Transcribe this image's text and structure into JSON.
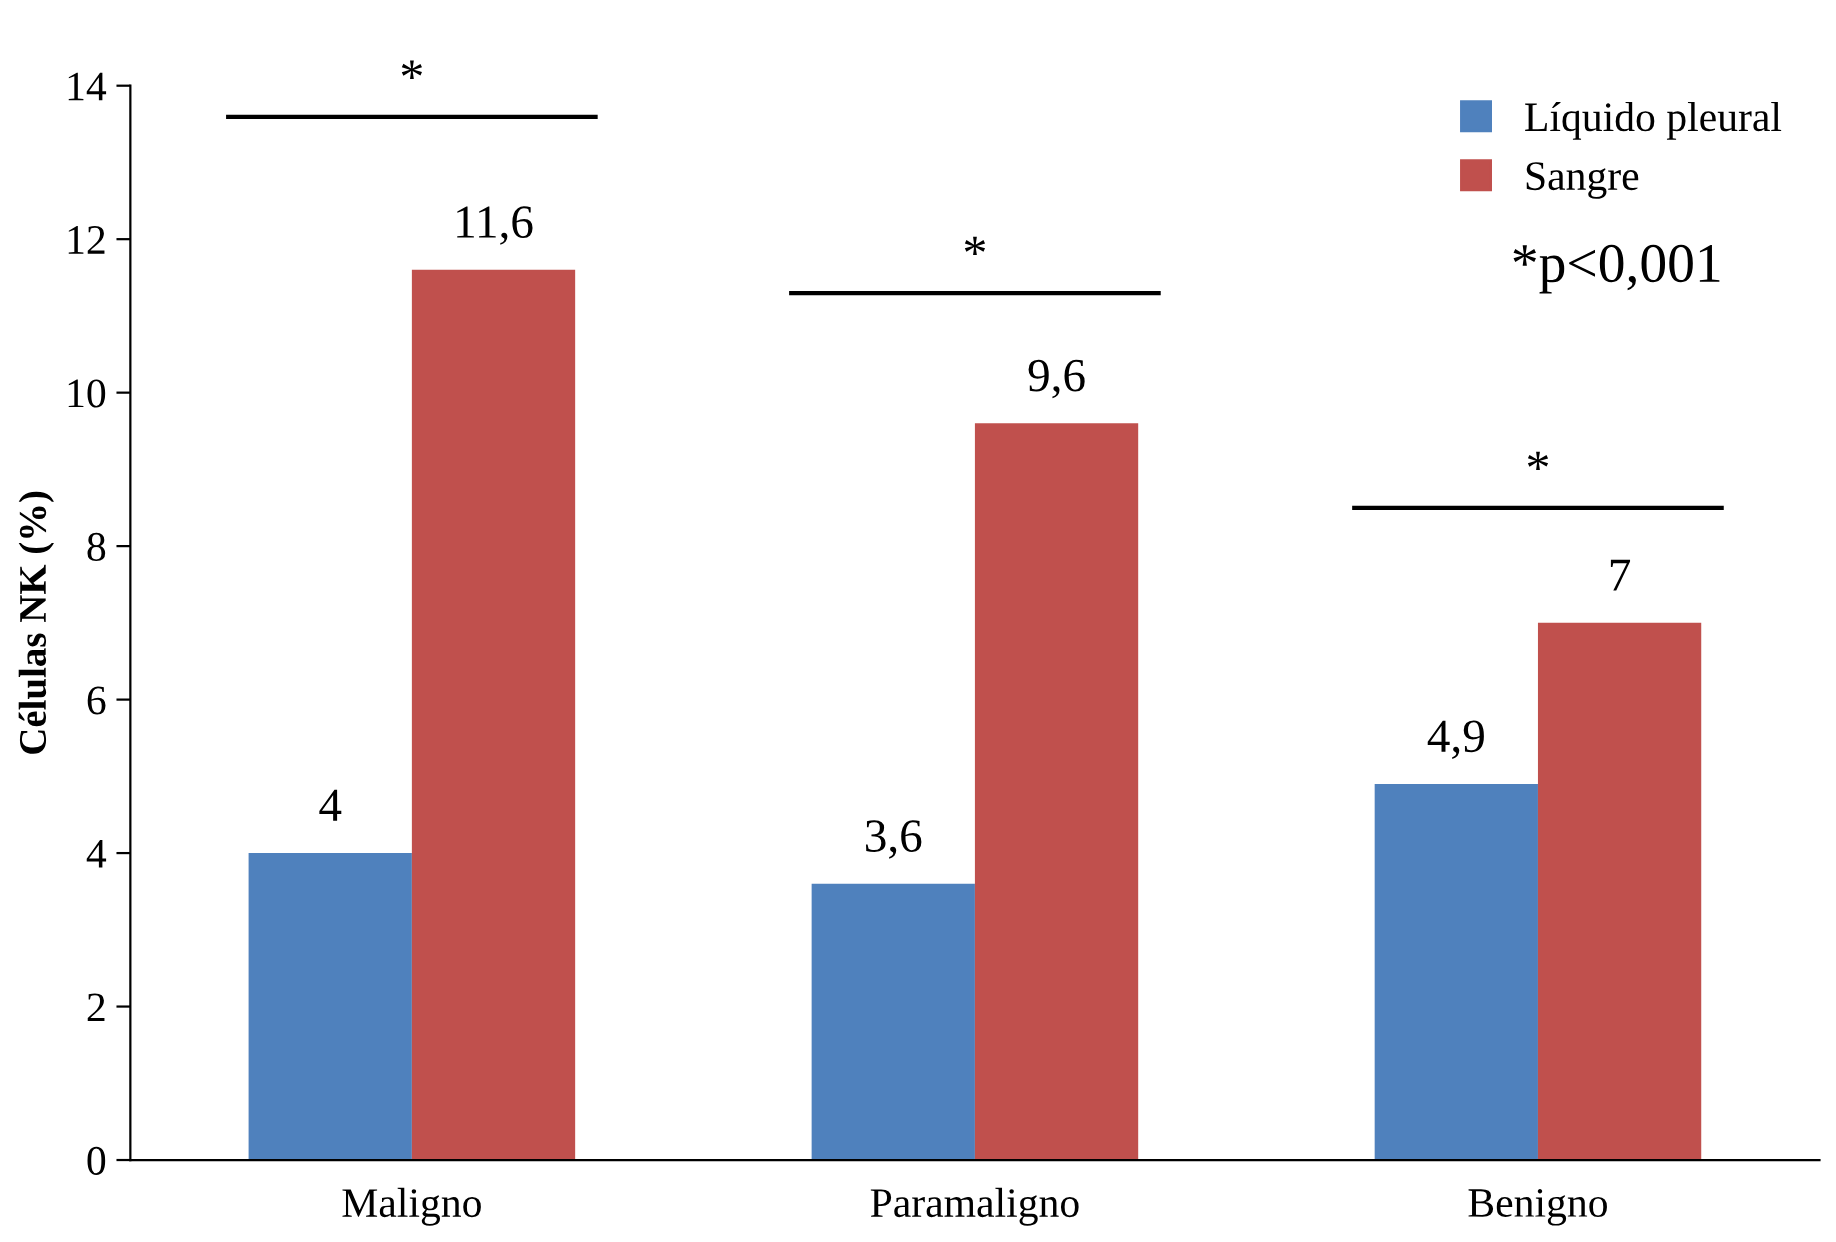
{
  "chart_data": {
    "type": "bar",
    "ylabel": "Células NK (%)",
    "categories": [
      "Maligno",
      "Paramaligno",
      "Benigno"
    ],
    "series": [
      {
        "name": "Líquido pleural",
        "color": "#4f81bd",
        "values": [
          4,
          3.6,
          4.9
        ],
        "value_labels": [
          "4",
          "3,6",
          "4,9"
        ]
      },
      {
        "name": "Sangre",
        "color": "#c0504d",
        "values": [
          11.6,
          9.6,
          7
        ],
        "value_labels": [
          "11,6",
          "9,6",
          "7"
        ]
      }
    ],
    "ylim": [
      0,
      14
    ],
    "yticks": [
      0,
      2,
      4,
      6,
      8,
      10,
      12,
      14
    ],
    "grid": false,
    "legend": "top right",
    "annotations": [
      "*",
      "*",
      "*",
      "*p<0,001"
    ]
  }
}
